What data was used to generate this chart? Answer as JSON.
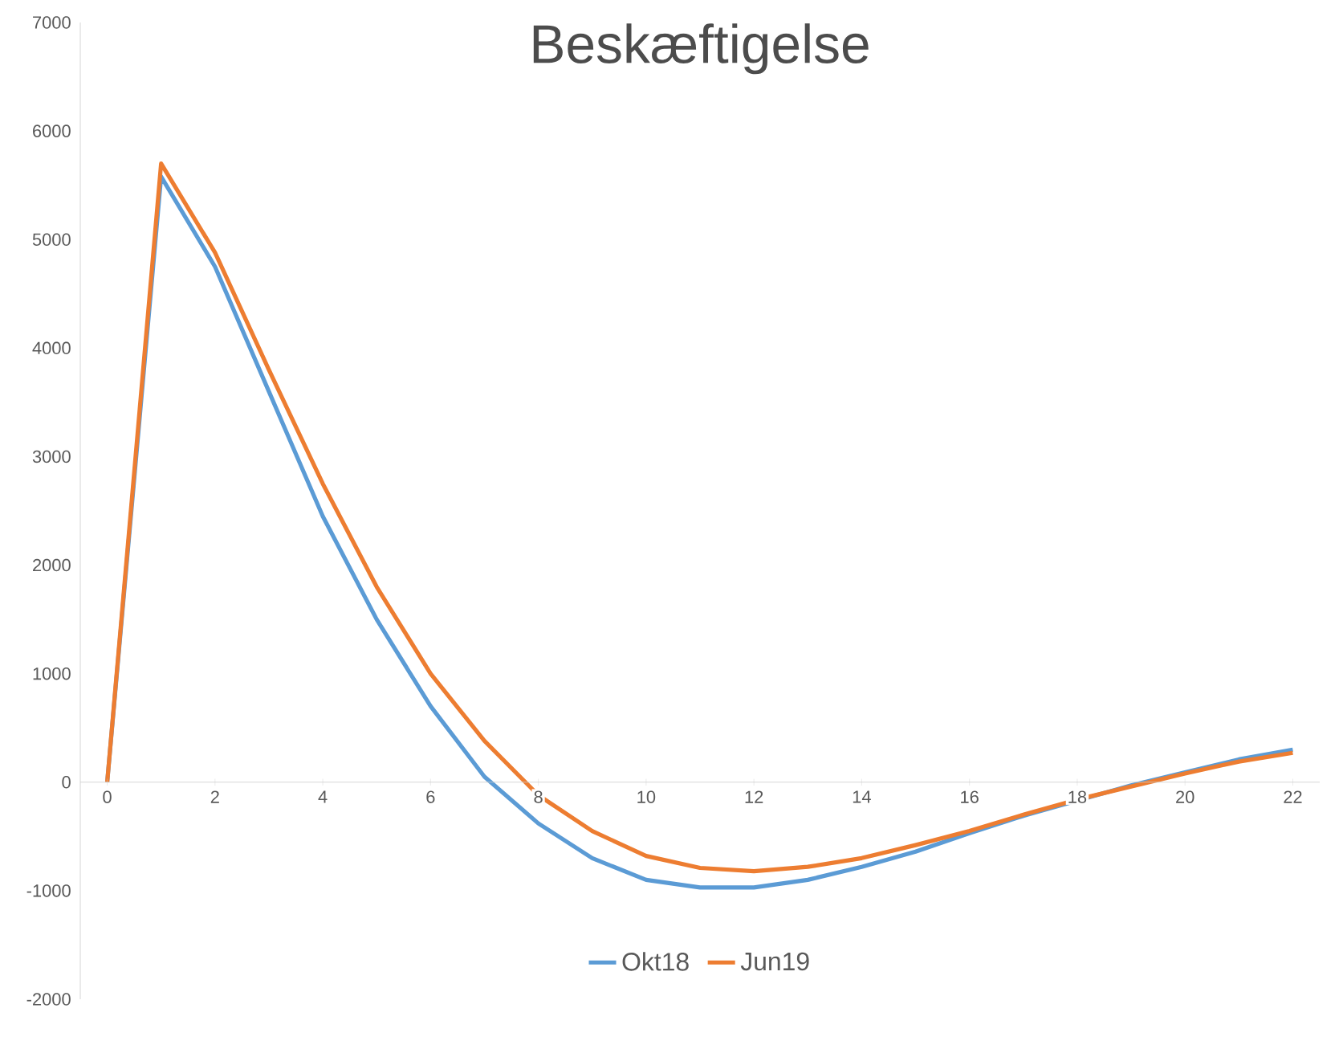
{
  "chart_data": {
    "type": "line",
    "title": "Beskæftigelse",
    "x": [
      0,
      1,
      2,
      3,
      4,
      5,
      6,
      7,
      8,
      9,
      10,
      11,
      12,
      13,
      14,
      15,
      16,
      17,
      18,
      19,
      20,
      21,
      22
    ],
    "series": [
      {
        "name": "Okt18",
        "color": "#5b9bd5",
        "values": [
          0,
          5580,
          4750,
          3600,
          2450,
          1500,
          700,
          50,
          -380,
          -700,
          -900,
          -970,
          -970,
          -900,
          -780,
          -640,
          -470,
          -310,
          -170,
          -30,
          90,
          210,
          300
        ]
      },
      {
        "name": "Jun19",
        "color": "#ed7d31",
        "values": [
          0,
          5700,
          4880,
          3800,
          2750,
          1800,
          1000,
          380,
          -120,
          -450,
          -680,
          -790,
          -820,
          -780,
          -700,
          -580,
          -450,
          -300,
          -160,
          -40,
          80,
          190,
          270
        ]
      }
    ],
    "xlim": [
      -0.5,
      22.5
    ],
    "ylim": [
      -2000,
      7000
    ],
    "xticks": [
      0,
      2,
      4,
      6,
      8,
      10,
      12,
      14,
      16,
      18,
      20,
      22
    ],
    "yticks": [
      -2000,
      -1000,
      0,
      1000,
      2000,
      3000,
      4000,
      5000,
      6000,
      7000
    ],
    "grid": false,
    "legend": "bottom",
    "marker": "none",
    "line_style": "solid"
  }
}
